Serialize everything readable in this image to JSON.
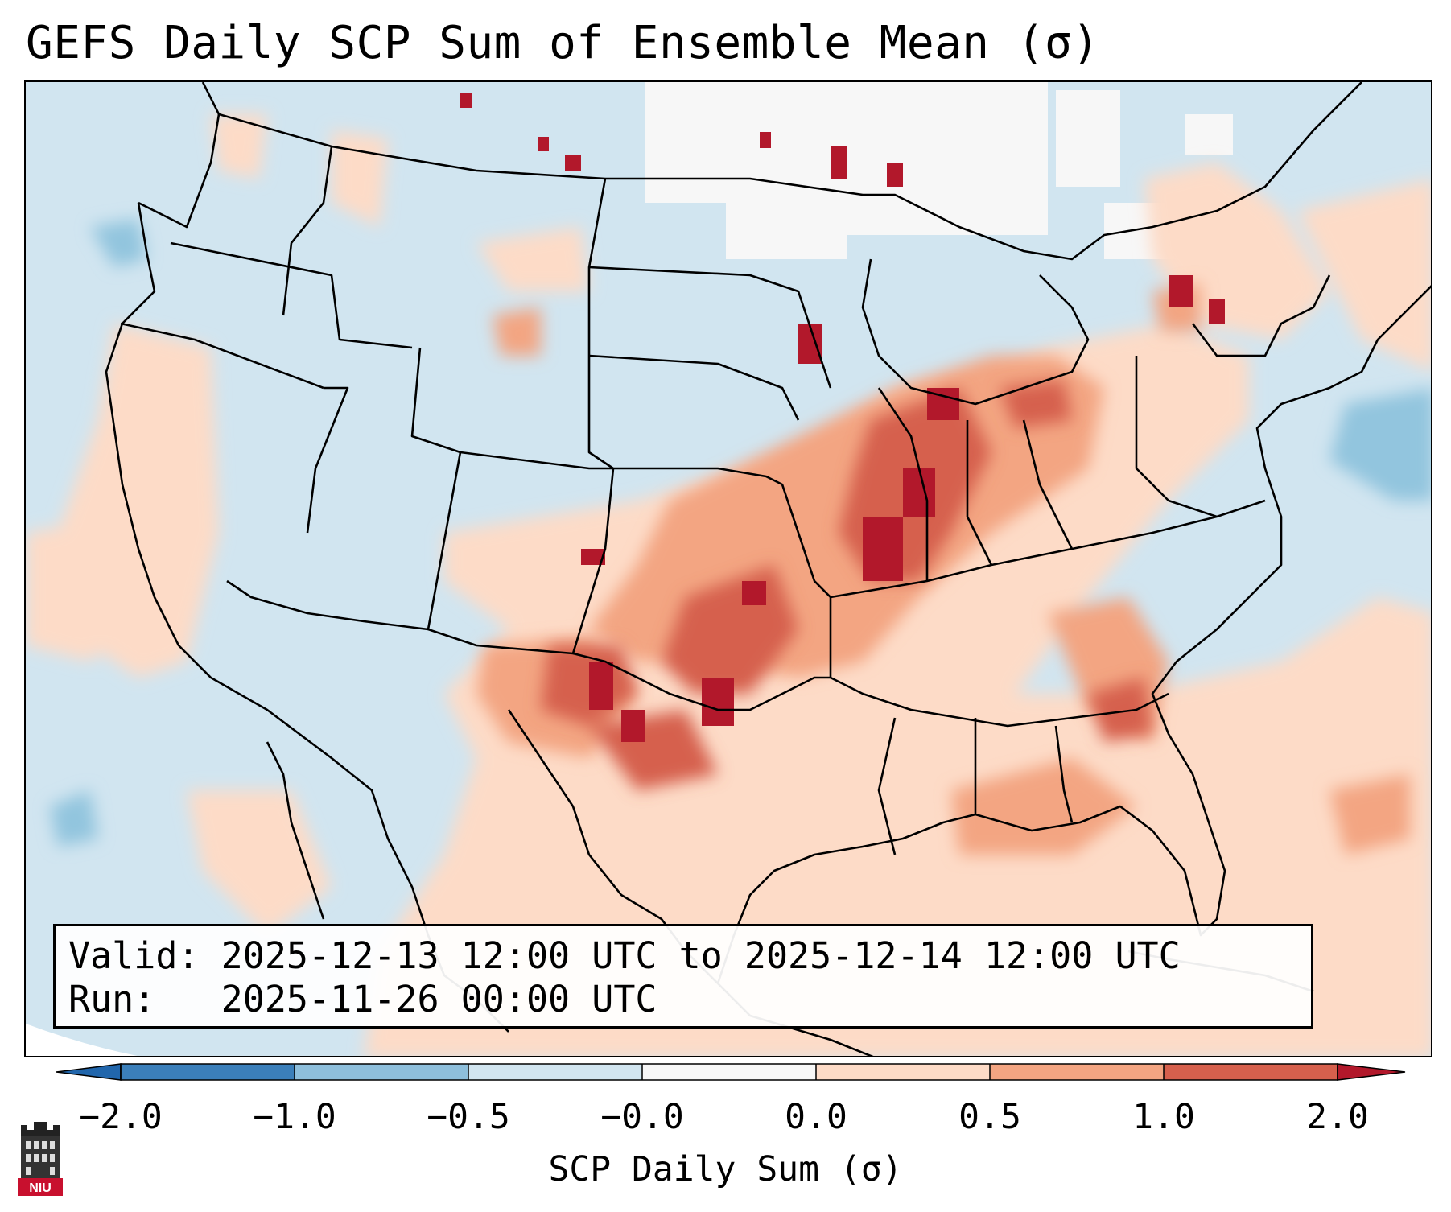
{
  "title": "GEFS Daily SCP Sum of Ensemble Mean (σ)",
  "info": {
    "valid_label": "Valid:",
    "valid_value": "2025-12-13 12:00 UTC to 2025-12-14 12:00 UTC",
    "run_label": "Run:",
    "run_value": "2025-11-26 00:00 UTC"
  },
  "colorbar": {
    "label": "SCP Daily Sum (σ)",
    "ticks": [
      "−2.0",
      "−1.0",
      "−0.5",
      "−0.0",
      "0.0",
      "0.5",
      "1.0",
      "2.0"
    ],
    "colors": [
      "#3b7fba",
      "#8ebfdc",
      "#d1e5f0",
      "#f7f7f7",
      "#fddbc7",
      "#f3a582",
      "#d6604d",
      "#b2182b"
    ],
    "under_color": "#2166ac",
    "over_color": "#9e0f26"
  },
  "logo": {
    "text": "NIU",
    "icon": "university-building-icon"
  }
}
